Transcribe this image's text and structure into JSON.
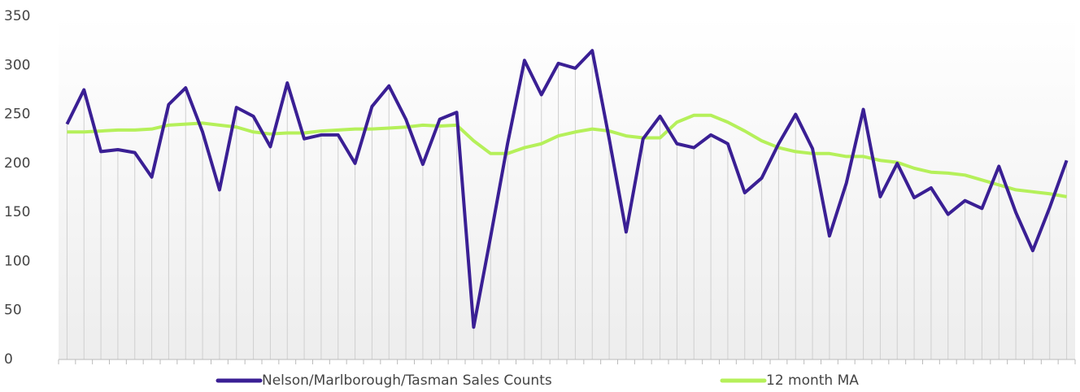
{
  "chart_data": {
    "type": "line",
    "categories": [
      null,
      null,
      null,
      null,
      null,
      null,
      null,
      null,
      null,
      null,
      null,
      null,
      null,
      null,
      null,
      null,
      null,
      null,
      null,
      null,
      null,
      null,
      null,
      null,
      null,
      null,
      null,
      null,
      null,
      null,
      null,
      null,
      null,
      null,
      null,
      null,
      null,
      null,
      null,
      null,
      null,
      null,
      null,
      null,
      null,
      null,
      null,
      null,
      null,
      null,
      null,
      null,
      null,
      null,
      null,
      null,
      null,
      null,
      null,
      null
    ],
    "series": [
      {
        "name": "Nelson/Marlborough/Tasman Sales Counts",
        "color": "#3a1f94",
        "values": [
          240,
          275,
          212,
          214,
          211,
          186,
          260,
          277,
          232,
          173,
          257,
          248,
          217,
          282,
          225,
          229,
          229,
          200,
          258,
          279,
          245,
          199,
          245,
          252,
          33,
          125,
          220,
          305,
          270,
          302,
          297,
          315,
          225,
          130,
          225,
          248,
          220,
          216,
          229,
          220,
          170,
          185,
          220,
          250,
          215,
          126,
          180,
          255,
          166,
          200,
          165,
          175,
          148,
          162,
          154,
          197,
          150,
          111,
          155,
          203
        ]
      },
      {
        "name": "12 month MA",
        "color": "#b5f05a",
        "values": [
          232,
          232,
          233,
          234,
          234,
          235,
          239,
          240,
          241,
          239,
          237,
          232,
          230,
          231,
          231,
          233,
          234,
          235,
          235,
          236,
          237,
          239,
          238,
          239,
          223,
          210,
          210,
          216,
          220,
          228,
          232,
          235,
          233,
          228,
          226,
          226,
          242,
          249,
          249,
          242,
          233,
          223,
          216,
          212,
          210,
          210,
          207,
          207,
          203,
          201,
          195,
          191,
          190,
          188,
          183,
          178,
          173,
          171,
          169,
          166
        ]
      }
    ],
    "ylim": [
      0,
      350
    ],
    "yticks": [
      0,
      50,
      100,
      150,
      200,
      250,
      300,
      350
    ],
    "grid": false
  }
}
